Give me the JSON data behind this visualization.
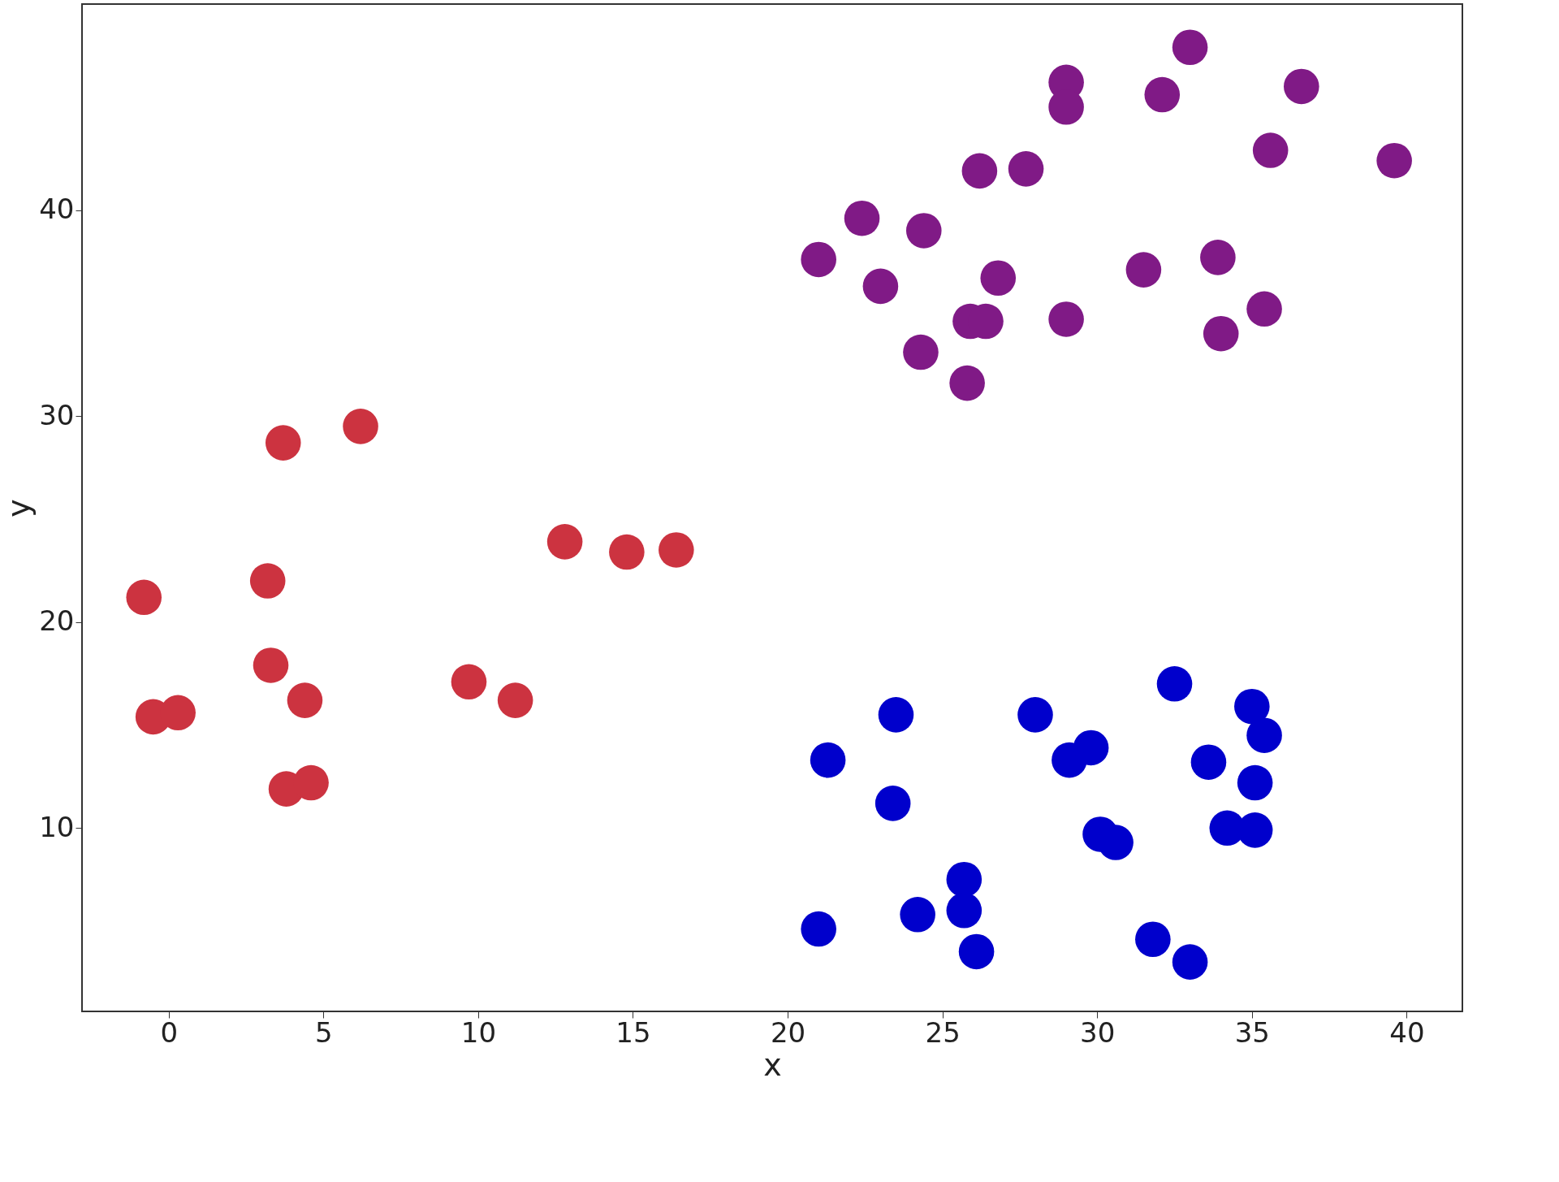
{
  "chart_data": {
    "type": "scatter",
    "xlabel": "x",
    "ylabel": "y",
    "xlim": [
      -2.8,
      41.8
    ],
    "ylim": [
      1.1,
      50
    ],
    "xticks": [
      0,
      5,
      10,
      15,
      20,
      25,
      30,
      35,
      40
    ],
    "yticks": [
      10,
      20,
      30,
      40
    ],
    "grid": false,
    "legend": false,
    "marker": "circle",
    "series": [
      {
        "color": "#cc3340",
        "x": [
          -0.8,
          -0.5,
          0.3,
          3.2,
          3.3,
          3.7,
          6.2,
          3.8,
          4.6,
          4.4,
          9.7,
          11.2,
          12.8,
          14.8,
          16.4
        ],
        "values": [
          21.2,
          15.4,
          15.6,
          22.0,
          17.9,
          28.7,
          29.5,
          11.9,
          12.2,
          16.2,
          17.1,
          16.2,
          23.9,
          23.4,
          23.5
        ]
      },
      {
        "color": "#801a86",
        "x": [
          21.0,
          22.4,
          23.0,
          24.4,
          24.3,
          26.2,
          27.7,
          26.8,
          25.9,
          26.4,
          25.8,
          29.0,
          29.0,
          29.0,
          31.5,
          32.1,
          33.0,
          33.9,
          34.0,
          35.6,
          35.4,
          36.6,
          39.6
        ],
        "values": [
          37.6,
          39.6,
          36.3,
          39.0,
          33.1,
          41.9,
          42.0,
          36.7,
          34.6,
          34.6,
          31.6,
          46.2,
          45.0,
          34.7,
          37.1,
          45.6,
          47.9,
          37.7,
          34.0,
          42.9,
          35.2,
          46.0,
          42.4
        ]
      },
      {
        "color": "#0000cc",
        "x": [
          21.3,
          21.0,
          23.5,
          23.4,
          24.2,
          25.7,
          25.7,
          26.1,
          28.0,
          29.1,
          29.8,
          30.1,
          30.6,
          31.8,
          32.5,
          33.0,
          33.6,
          34.2,
          35.0,
          35.4,
          35.1,
          35.1
        ],
        "values": [
          13.3,
          5.1,
          15.5,
          11.2,
          5.8,
          7.5,
          6.0,
          4.0,
          15.5,
          13.3,
          13.9,
          9.7,
          9.3,
          4.6,
          17.0,
          3.5,
          13.2,
          10.0,
          15.9,
          14.5,
          12.2,
          9.9
        ]
      }
    ]
  }
}
